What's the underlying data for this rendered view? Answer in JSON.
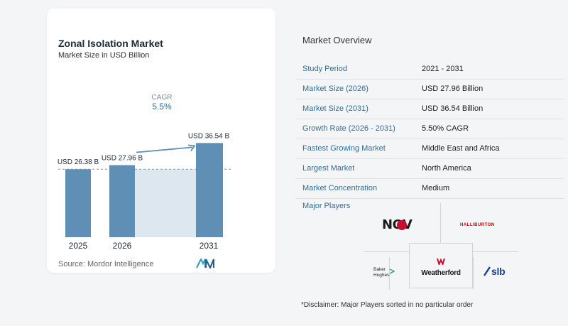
{
  "chart": {
    "title": "Zonal Isolation Market",
    "subtitle": "Market Size in USD Billion",
    "source": "Source:  Mordor Intelligence",
    "cagr_label": "CAGR",
    "cagr_value": "5.5%",
    "bar_color": "#5f8fb5",
    "shade_color": "#dde7f0"
  },
  "chart_data": {
    "type": "bar",
    "title": "Zonal Isolation Market",
    "subtitle": "Market Size in USD Billion",
    "categories": [
      "2025",
      "2026",
      "2031"
    ],
    "values": [
      26.38,
      27.96,
      36.54
    ],
    "data_labels": [
      "USD 26.38 B",
      "USD 27.96 B",
      "USD 36.54 B"
    ],
    "annotations": [
      "CAGR",
      "5.5%"
    ]
  },
  "overview": {
    "title": "Market Overview",
    "rows": [
      {
        "key": "Study Period",
        "value": "2021 - 2031"
      },
      {
        "key": "Market Size (2026)",
        "value": "USD 27.96 Billion"
      },
      {
        "key": "Market Size (2031)",
        "value": "USD 36.54 Billion"
      },
      {
        "key": "Growth Rate (2026 - 2031)",
        "value": "5.50% CAGR"
      },
      {
        "key": "Fastest Growing Market",
        "value": "Middle East and Africa"
      },
      {
        "key": "Largest Market",
        "value": "North America"
      },
      {
        "key": "Market Concentration",
        "value": "Medium"
      }
    ],
    "players_title": "Major Players",
    "players": {
      "nov": "NOV",
      "halliburton": "HALLIBURTON",
      "baker_1": "Baker",
      "baker_2": "Hughes",
      "weatherford": "Weatherford",
      "slb": "slb"
    },
    "disclaimer": "*Disclaimer: Major Players sorted in no particular order"
  }
}
